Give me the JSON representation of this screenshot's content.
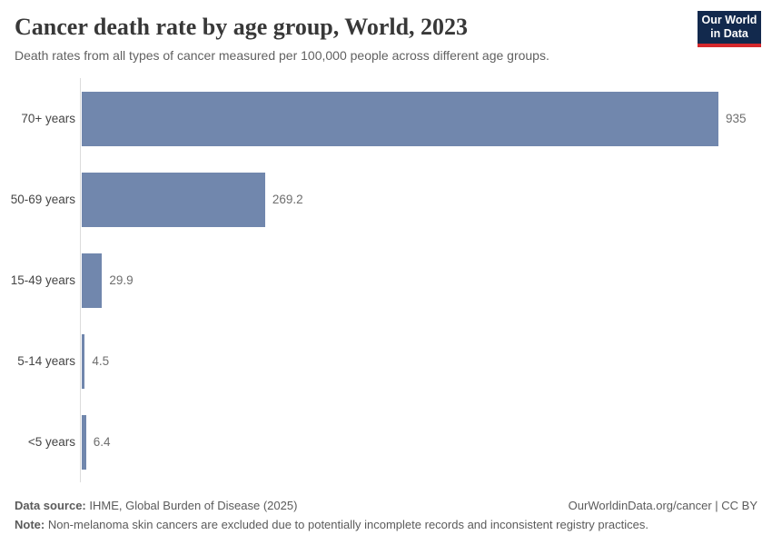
{
  "header": {
    "title": "Cancer death rate by age group, World, 2023",
    "subtitle": "Death rates from all types of cancer measured per 100,000 people across different age groups.",
    "logo": {
      "line1": "Our World",
      "line2": "in Data",
      "bg_color": "#12294d",
      "accent_color": "#d5282c"
    }
  },
  "chart_data": {
    "type": "bar",
    "orientation": "horizontal",
    "title": "Cancer death rate by age group, World, 2023",
    "xlabel": "",
    "ylabel": "",
    "categories": [
      "70+ years",
      "50-69 years",
      "15-49 years",
      "5-14 years",
      "<5 years"
    ],
    "values": [
      935,
      269.2,
      29.9,
      4.5,
      6.4
    ],
    "value_labels": [
      "935",
      "269.2",
      "29.9",
      "4.5",
      "6.4"
    ],
    "unit": "deaths per 100,000 people",
    "xlim": [
      0,
      935
    ],
    "grid": false,
    "legend": null,
    "bar_color": "#7187ad",
    "axis_color": "#dcdcdc"
  },
  "footer": {
    "source_label": "Data source:",
    "source_text": " IHME, Global Burden of Disease (2025)",
    "note_label": "Note:",
    "note_text": " Non-melanoma skin cancers are excluded due to potentially incomplete records and inconsistent registry practices.",
    "link_text": "OurWorldinData.org/cancer | CC BY"
  }
}
